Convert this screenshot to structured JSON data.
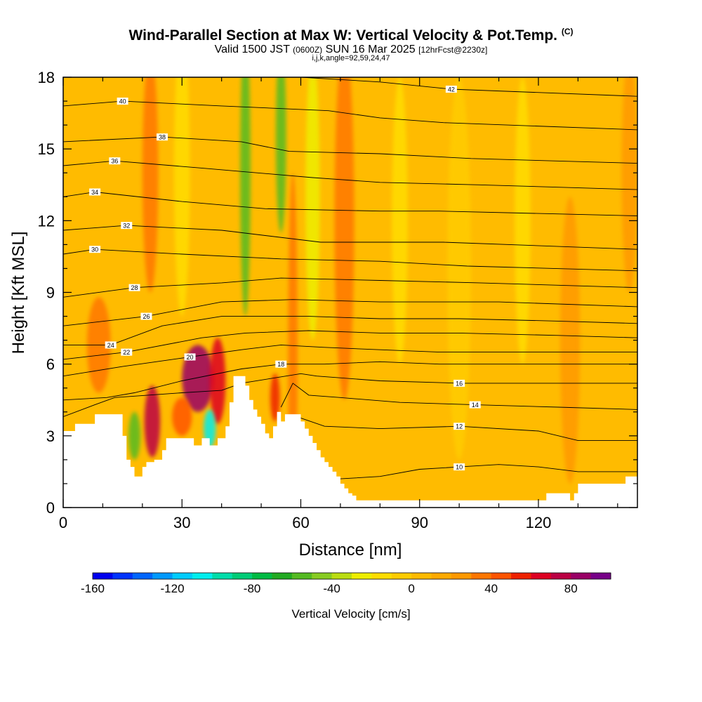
{
  "titles": {
    "line1": "Wind-Parallel Section at Max W: Vertical Velocity & Pot.Temp.",
    "line1_tag": "(C)",
    "line2_a": "Valid 1500 JST",
    "line2_b": "(0600Z)",
    "line2_c": "SUN 16 Mar 2025",
    "line2_d": "[12hrFcst@2230z]",
    "line3": "i,j,k,angle=92,59,24,47"
  },
  "chart_data": {
    "type": "heatmap",
    "xlabel": "Distance [nm]",
    "ylabel": "Height [Kft MSL]",
    "xlim": [
      0,
      145
    ],
    "ylim": [
      0,
      18
    ],
    "x_ticks": [
      {
        "v": 0,
        "label": "0"
      },
      {
        "v": 30,
        "label": "30"
      },
      {
        "v": 60,
        "label": "60"
      },
      {
        "v": 90,
        "label": "90"
      },
      {
        "v": 120,
        "label": "120"
      }
    ],
    "y_ticks": [
      {
        "v": 0,
        "label": "0"
      },
      {
        "v": 3,
        "label": "3"
      },
      {
        "v": 6,
        "label": "6"
      },
      {
        "v": 9,
        "label": "9"
      },
      {
        "v": 12,
        "label": "12"
      },
      {
        "v": 15,
        "label": "15"
      },
      {
        "v": 18,
        "label": "18"
      }
    ],
    "colorbar": {
      "title": "Vertical Velocity [cm/s]",
      "min": -160,
      "max": 90,
      "step": 10,
      "labels": [
        {
          "v": -160,
          "label": "-160"
        },
        {
          "v": -120,
          "label": "-120"
        },
        {
          "v": -80,
          "label": "-80"
        },
        {
          "v": -40,
          "label": "-40"
        },
        {
          "v": 0,
          "label": "0"
        },
        {
          "v": 40,
          "label": "40"
        },
        {
          "v": 80,
          "label": "80"
        }
      ],
      "colors": [
        "#0000ee",
        "#0033ff",
        "#0066ff",
        "#0099ff",
        "#00ccff",
        "#00eeee",
        "#00ddaa",
        "#00cc77",
        "#00bb44",
        "#22aa22",
        "#55bb22",
        "#88cc22",
        "#bbdd11",
        "#eeee00",
        "#ffdd00",
        "#ffcc00",
        "#ffbb00",
        "#ffaa00",
        "#ff9900",
        "#ff7700",
        "#ff5500",
        "#ee2200",
        "#dd0022",
        "#bb0044",
        "#990066",
        "#770088"
      ]
    },
    "terrain_kft": [
      [
        0,
        3.2
      ],
      [
        3,
        3.5
      ],
      [
        5,
        3.5
      ],
      [
        7,
        3.5
      ],
      [
        8,
        3.9
      ],
      [
        13,
        3.9
      ],
      [
        15,
        3.0
      ],
      [
        16,
        2.0
      ],
      [
        17,
        1.7
      ],
      [
        18,
        1.3
      ],
      [
        19,
        1.3
      ],
      [
        20,
        1.7
      ],
      [
        21,
        1.9
      ],
      [
        23,
        2.0
      ],
      [
        25,
        2.4
      ],
      [
        26,
        2.9
      ],
      [
        32,
        2.9
      ],
      [
        33,
        2.6
      ],
      [
        34,
        2.6
      ],
      [
        35,
        2.9
      ],
      [
        36,
        2.9
      ],
      [
        37,
        2.6
      ],
      [
        38,
        2.6
      ],
      [
        39,
        2.9
      ],
      [
        40,
        2.9
      ],
      [
        41,
        3.4
      ],
      [
        42,
        4.4
      ],
      [
        43,
        5.5
      ],
      [
        45,
        5.5
      ],
      [
        46,
        5.1
      ],
      [
        47,
        4.5
      ],
      [
        48,
        4.1
      ],
      [
        49,
        3.8
      ],
      [
        50,
        3.5
      ],
      [
        51,
        3.1
      ],
      [
        52,
        2.9
      ],
      [
        53,
        3.4
      ],
      [
        54,
        4.0
      ],
      [
        55,
        3.6
      ],
      [
        56,
        3.9
      ],
      [
        59,
        3.9
      ],
      [
        60,
        3.6
      ],
      [
        61,
        3.3
      ],
      [
        62,
        3.0
      ],
      [
        63,
        2.7
      ],
      [
        64,
        2.4
      ],
      [
        65,
        2.1
      ],
      [
        66,
        1.9
      ],
      [
        67,
        1.7
      ],
      [
        68,
        1.5
      ],
      [
        69,
        1.3
      ],
      [
        70,
        1.0
      ],
      [
        71,
        0.8
      ],
      [
        72,
        0.6
      ],
      [
        73,
        0.5
      ],
      [
        74,
        0.3
      ],
      [
        121,
        0.3
      ],
      [
        122,
        0.6
      ],
      [
        127,
        0.6
      ],
      [
        128,
        0.3
      ],
      [
        129,
        0.6
      ],
      [
        130,
        1.0
      ],
      [
        135,
        1.0
      ],
      [
        138,
        1.0
      ],
      [
        141,
        1.0
      ],
      [
        142,
        1.3
      ],
      [
        145,
        1.3
      ]
    ],
    "velocity_features": [
      {
        "x": 34,
        "y": 5.4,
        "rx": 4,
        "ry": 1.4,
        "w": 85
      },
      {
        "x": 39,
        "y": 5.3,
        "rx": 2,
        "ry": 1.8,
        "w": 60
      },
      {
        "x": 22.5,
        "y": 3.6,
        "rx": 2,
        "ry": 1.5,
        "w": 75
      },
      {
        "x": 37,
        "y": 3.3,
        "rx": 1.5,
        "ry": 0.8,
        "w": -110
      },
      {
        "x": 30,
        "y": 3.8,
        "rx": 2.5,
        "ry": 0.8,
        "w": 40
      },
      {
        "x": 18,
        "y": 3.0,
        "rx": 1.5,
        "ry": 1.0,
        "w": -60
      },
      {
        "x": 9,
        "y": 6.8,
        "rx": 3,
        "ry": 2.0,
        "w": 30
      },
      {
        "x": 53.5,
        "y": 4.6,
        "rx": 1.2,
        "ry": 1.0,
        "w": 50
      },
      {
        "x": 58,
        "y": 6.5,
        "rx": 1.2,
        "ry": 7.5,
        "w": 35
      },
      {
        "x": 46,
        "y": 14.0,
        "rx": 1.3,
        "ry": 6.0,
        "w": -60
      },
      {
        "x": 55,
        "y": 15.5,
        "rx": 1.3,
        "ry": 4.0,
        "w": -55
      },
      {
        "x": 71,
        "y": 12.0,
        "rx": 2.5,
        "ry": 7.5,
        "w": 35
      },
      {
        "x": 22,
        "y": 14.0,
        "rx": 2.0,
        "ry": 5.0,
        "w": 30
      },
      {
        "x": 63,
        "y": 13.0,
        "rx": 1.8,
        "ry": 6.0,
        "w": -25
      },
      {
        "x": 30,
        "y": 14.0,
        "rx": 2.0,
        "ry": 6.0,
        "w": -15
      },
      {
        "x": 85,
        "y": 12.0,
        "rx": 2.0,
        "ry": 6.0,
        "w": -12
      },
      {
        "x": 128,
        "y": 7.0,
        "rx": 2.5,
        "ry": 6.0,
        "w": 25
      },
      {
        "x": 116,
        "y": 12.0,
        "rx": 2.0,
        "ry": 6.0,
        "w": -12
      },
      {
        "x": 143,
        "y": 14.0,
        "rx": 2.0,
        "ry": 5.0,
        "w": 25
      },
      {
        "x": 100,
        "y": 10.0,
        "rx": 3.0,
        "ry": 8.0,
        "w": -10
      }
    ],
    "theta_contours": [
      {
        "level": "10",
        "label_at": [
          100,
          1.7
        ],
        "pts": [
          [
            70,
            1.2
          ],
          [
            80,
            1.3
          ],
          [
            90,
            1.6
          ],
          [
            100,
            1.7
          ],
          [
            110,
            1.8
          ],
          [
            120,
            1.7
          ],
          [
            130,
            1.5
          ],
          [
            145,
            1.5
          ]
        ]
      },
      {
        "level": "12",
        "label_at": [
          100,
          3.4
        ],
        "pts": [
          [
            59,
            3.8
          ],
          [
            66,
            3.4
          ],
          [
            80,
            3.3
          ],
          [
            100,
            3.4
          ],
          [
            120,
            3.2
          ],
          [
            130,
            2.8
          ],
          [
            145,
            2.8
          ]
        ]
      },
      {
        "level": "14",
        "label_at": [
          104,
          4.3
        ],
        "pts": [
          [
            55,
            4.2
          ],
          [
            58,
            5.2
          ],
          [
            62,
            4.7
          ],
          [
            70,
            4.6
          ],
          [
            85,
            4.4
          ],
          [
            104,
            4.3
          ],
          [
            125,
            4.2
          ],
          [
            145,
            4.1
          ]
        ]
      },
      {
        "level": "16",
        "label_at": [
          100,
          5.2
        ],
        "pts": [
          [
            0,
            3.8
          ],
          [
            8,
            4.3
          ],
          [
            13,
            4.6
          ],
          [
            30,
            4.8
          ],
          [
            40,
            4.9
          ],
          [
            45,
            5.2
          ],
          [
            60,
            5.6
          ],
          [
            64,
            5.5
          ],
          [
            80,
            5.3
          ],
          [
            100,
            5.2
          ],
          [
            125,
            5.2
          ],
          [
            145,
            5.2
          ]
        ]
      },
      {
        "level": "18",
        "label_at": [
          55,
          6.0
        ],
        "pts": [
          [
            0,
            4.5
          ],
          [
            11,
            4.6
          ],
          [
            18,
            4.8
          ],
          [
            30,
            5.3
          ],
          [
            45,
            5.8
          ],
          [
            55,
            6.0
          ],
          [
            66,
            6.0
          ],
          [
            80,
            6.1
          ],
          [
            95,
            6.0
          ],
          [
            120,
            6.0
          ],
          [
            145,
            6.0
          ]
        ]
      },
      {
        "level": "20",
        "label_at": [
          32,
          6.3
        ],
        "pts": [
          [
            0,
            5.5
          ],
          [
            15,
            5.9
          ],
          [
            32,
            6.3
          ],
          [
            45,
            6.6
          ],
          [
            55,
            6.8
          ],
          [
            66,
            6.7
          ],
          [
            80,
            6.6
          ],
          [
            95,
            6.5
          ],
          [
            120,
            6.5
          ],
          [
            145,
            6.5
          ]
        ]
      },
      {
        "level": "22",
        "label_at": [
          16,
          6.5
        ],
        "pts": [
          [
            0,
            6.2
          ],
          [
            16,
            6.5
          ],
          [
            35,
            7.1
          ],
          [
            46,
            7.3
          ],
          [
            62,
            7.4
          ],
          [
            80,
            7.3
          ],
          [
            100,
            7.3
          ],
          [
            125,
            7.2
          ],
          [
            145,
            7.1
          ]
        ]
      },
      {
        "level": "24",
        "label_at": [
          12,
          6.8
        ],
        "pts": [
          [
            0,
            6.8
          ],
          [
            12,
            6.8
          ],
          [
            25,
            7.6
          ],
          [
            40,
            8.0
          ],
          [
            62,
            8.0
          ],
          [
            80,
            7.9
          ],
          [
            100,
            7.9
          ],
          [
            125,
            7.8
          ],
          [
            145,
            7.7
          ]
        ]
      },
      {
        "level": "26",
        "label_at": [
          21,
          8.0
        ],
        "pts": [
          [
            0,
            7.6
          ],
          [
            21,
            8.0
          ],
          [
            40,
            8.6
          ],
          [
            58,
            8.7
          ],
          [
            80,
            8.6
          ],
          [
            110,
            8.6
          ],
          [
            145,
            8.4
          ]
        ]
      },
      {
        "level": "28",
        "label_at": [
          18,
          9.2
        ],
        "pts": [
          [
            0,
            8.8
          ],
          [
            18,
            9.2
          ],
          [
            40,
            9.4
          ],
          [
            55,
            9.6
          ],
          [
            80,
            9.5
          ],
          [
            105,
            9.4
          ],
          [
            145,
            9.2
          ]
        ]
      },
      {
        "level": "30",
        "label_at": [
          8,
          10.8
        ],
        "pts": [
          [
            0,
            10.6
          ],
          [
            8,
            10.8
          ],
          [
            30,
            10.6
          ],
          [
            55,
            10.4
          ],
          [
            80,
            10.3
          ],
          [
            102,
            10.1
          ],
          [
            145,
            9.9
          ]
        ]
      },
      {
        "level": "32",
        "label_at": [
          16,
          11.8
        ],
        "pts": [
          [
            0,
            11.6
          ],
          [
            16,
            11.8
          ],
          [
            40,
            11.6
          ],
          [
            65,
            11.1
          ],
          [
            80,
            11.1
          ],
          [
            96,
            11.1
          ],
          [
            145,
            10.8
          ]
        ]
      },
      {
        "level": "34",
        "label_at": [
          8,
          13.2
        ],
        "pts": [
          [
            0,
            13.0
          ],
          [
            8,
            13.2
          ],
          [
            30,
            12.8
          ],
          [
            51,
            12.5
          ],
          [
            80,
            12.4
          ],
          [
            95,
            12.4
          ],
          [
            145,
            12.2
          ]
        ]
      },
      {
        "level": "36",
        "label_at": [
          13,
          14.5
        ],
        "pts": [
          [
            0,
            14.3
          ],
          [
            13,
            14.5
          ],
          [
            35,
            14.2
          ],
          [
            63,
            13.8
          ],
          [
            80,
            13.6
          ],
          [
            105,
            13.5
          ],
          [
            145,
            13.3
          ]
        ]
      },
      {
        "level": "38",
        "label_at": [
          25,
          15.5
        ],
        "pts": [
          [
            0,
            15.3
          ],
          [
            25,
            15.5
          ],
          [
            45,
            15.3
          ],
          [
            57,
            14.9
          ],
          [
            80,
            14.8
          ],
          [
            103,
            14.6
          ],
          [
            145,
            14.4
          ]
        ]
      },
      {
        "level": "40",
        "label_at": [
          15,
          17.0
        ],
        "pts": [
          [
            0,
            16.8
          ],
          [
            15,
            17.0
          ],
          [
            40,
            16.8
          ],
          [
            67,
            16.6
          ],
          [
            80,
            16.3
          ],
          [
            96,
            16.1
          ],
          [
            145,
            15.8
          ]
        ]
      },
      {
        "level": "42",
        "label_at": [
          98,
          17.5
        ],
        "pts": [
          [
            60,
            18.0
          ],
          [
            80,
            17.8
          ],
          [
            98,
            17.5
          ],
          [
            145,
            17.2
          ]
        ]
      }
    ]
  }
}
